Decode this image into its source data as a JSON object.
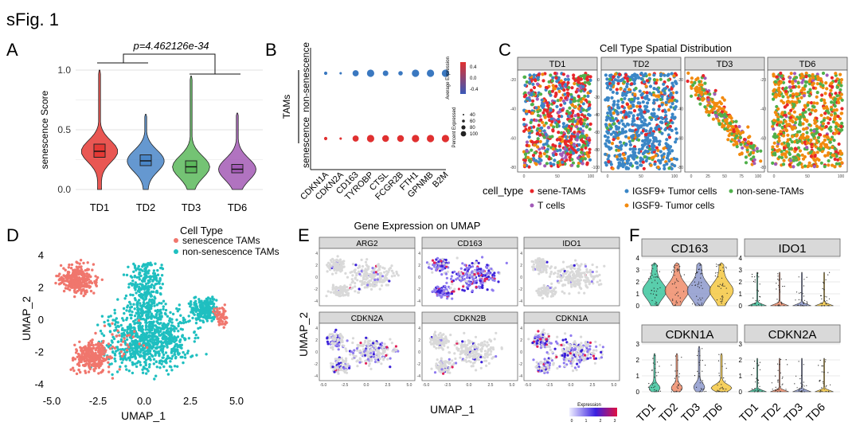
{
  "figure_title": "sFig. 1",
  "colors": {
    "td": [
      "#e53935",
      "#4a86c8",
      "#5cb85c",
      "#a35bb5"
    ],
    "sen": "#f0766d",
    "nonsen": "#1fbfc0",
    "dot_red": "#e03030",
    "dot_blue": "#3a78c0",
    "spatial": [
      "#e8262b",
      "#3a86c6",
      "#a25bb8",
      "#f28a0e",
      "#4fb04a"
    ],
    "vio_f": [
      "#3cc59d",
      "#f08c6a",
      "#8d99cc",
      "#f5c842"
    ]
  },
  "chart_data": [
    {
      "panel": "A",
      "type": "violin",
      "title": "",
      "significance": "p=4.462126e-34",
      "ylabel": "senescence Score",
      "ylim": [
        0,
        1.0
      ],
      "yticks": [
        "0.0",
        "0.5",
        "1.0"
      ],
      "categories": [
        "TD1",
        "TD2",
        "TD3",
        "TD6"
      ],
      "medians": [
        0.32,
        0.24,
        0.19,
        0.17
      ],
      "q1": [
        0.27,
        0.2,
        0.14,
        0.14
      ],
      "q3": [
        0.38,
        0.29,
        0.24,
        0.21
      ],
      "max": [
        1.0,
        0.63,
        0.95,
        0.64
      ]
    },
    {
      "panel": "B",
      "type": "dotplot",
      "genes": [
        "CDKN1A",
        "CDKN2A",
        "CD163",
        "TYROBP",
        "CTSL",
        "FCGR2B",
        "FTH1",
        "GPNMB",
        "B2M"
      ],
      "groups": [
        "non-senescence",
        "senescence"
      ],
      "group_label": "TAMs",
      "dot_scale": [
        [
          0.3,
          0.15,
          0.8,
          1.0,
          0.7,
          0.5,
          1.0,
          1.0,
          1.0
        ],
        [
          0.3,
          0.15,
          0.8,
          1.0,
          0.9,
          0.9,
          1.0,
          1.0,
          1.0
        ]
      ],
      "legend_color_title": "Average Expression",
      "legend_color_ticks": [
        "0.4",
        "0.0",
        "-0.4"
      ],
      "legend_size_title": "Percent Expressed",
      "legend_size_ticks": [
        "40",
        "60",
        "80",
        "100"
      ]
    },
    {
      "panel": "C",
      "type": "scatter",
      "title": "Cell Type Spatial Distribution",
      "facets": [
        "TD1",
        "TD2",
        "TD3",
        "TD6"
      ],
      "legend_title": "cell_type",
      "legend": [
        "sene-TAMs",
        "IGSF9+ Tumor cells",
        "non-sene-TAMs",
        "T cells",
        "IGSF9- Tumor cells"
      ],
      "facet_yticks": [
        [
          "-20",
          "-40",
          "-60",
          "-80"
        ],
        [
          "0",
          "-20",
          "-40",
          "-60",
          "-80",
          "-100"
        ],
        [
          "-20",
          "-40",
          "-60",
          "-80"
        ],
        [
          "-20",
          "-40",
          "-60",
          "-80"
        ]
      ],
      "facet_xticks": [
        [
          "0",
          "50",
          "100"
        ],
        [
          "0",
          "50",
          "100"
        ],
        [
          "0",
          "25",
          "50",
          "75",
          "100"
        ],
        [
          "0",
          "50",
          "100"
        ]
      ]
    },
    {
      "panel": "D",
      "type": "scatter",
      "legend_title": "Cell Type",
      "legend": [
        "senescence TAMs",
        "non-senescence TAMs"
      ],
      "xlabel": "UMAP_1",
      "ylabel": "UMAP_2",
      "xlim": [
        -5.5,
        5.3
      ],
      "ylim": [
        -4.3,
        5.0
      ],
      "xticks": [
        "-5.0",
        "-2.5",
        "0.0",
        "2.5",
        "5.0"
      ],
      "yticks": [
        "4",
        "2",
        "0",
        "-2",
        "-4"
      ]
    },
    {
      "panel": "E",
      "type": "scatter",
      "title": "Gene Expression on UMAP",
      "facets": [
        "ARG2",
        "CD163",
        "IDO1",
        "CDKN2A",
        "CDKN2B",
        "CDKN1A"
      ],
      "xlabel": "UMAP_1",
      "ylabel": "UMAP_2",
      "facet_yticks": [
        "4",
        "2",
        "0",
        "-2",
        "-4"
      ],
      "facet_xticks": [
        "-5.0",
        "-2.5",
        "0.0",
        "2.5",
        "5.0"
      ],
      "legend_title": "Expression",
      "legend_ticks": [
        "0",
        "1",
        "2",
        "3"
      ]
    },
    {
      "panel": "F",
      "type": "violin",
      "facets": [
        "CD163",
        "IDO1",
        "CDKN1A",
        "CDKN2A"
      ],
      "categories": [
        "TD1",
        "TD2",
        "TD3",
        "TD6"
      ],
      "yticks": [
        "0",
        "1",
        "2",
        "3",
        "4"
      ],
      "yticks_cdkn": [
        "0",
        "1",
        "2",
        "3"
      ]
    }
  ]
}
